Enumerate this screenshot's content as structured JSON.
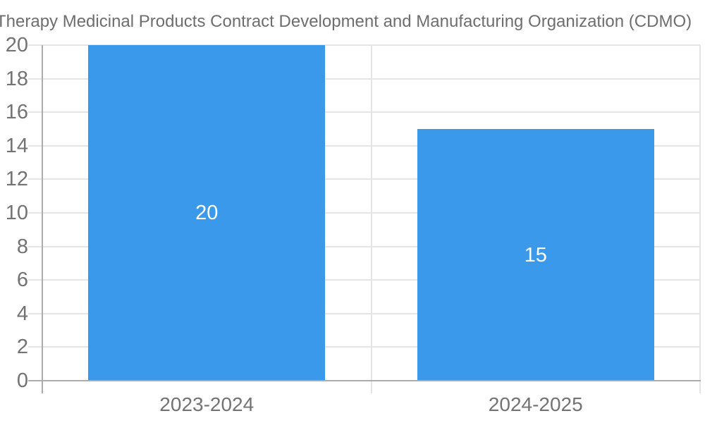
{
  "chart_data": {
    "type": "bar",
    "title": "Therapy Medicinal Products Contract Development and Manufacturing Organization (CDMO)",
    "categories": [
      "2023-2024",
      "2024-2025"
    ],
    "values": [
      20,
      15
    ],
    "data_labels": [
      "20",
      "15"
    ],
    "ylim": [
      0,
      20
    ],
    "ytick_step": 2,
    "ytick_labels": [
      "0",
      "2",
      "4",
      "6",
      "8",
      "10",
      "12",
      "14",
      "16",
      "18",
      "20"
    ],
    "xlabel": "",
    "ylabel": "",
    "legend": "none",
    "grid": "horizontal-and-category-boundaries",
    "colors": {
      "bar": "#3a99ea",
      "bar_value_label": "#ffffff",
      "title_text": "#6e6e6e",
      "tick_text": "#737373",
      "gridline": "#e5e5e5",
      "axis_line": "#acacac"
    }
  }
}
